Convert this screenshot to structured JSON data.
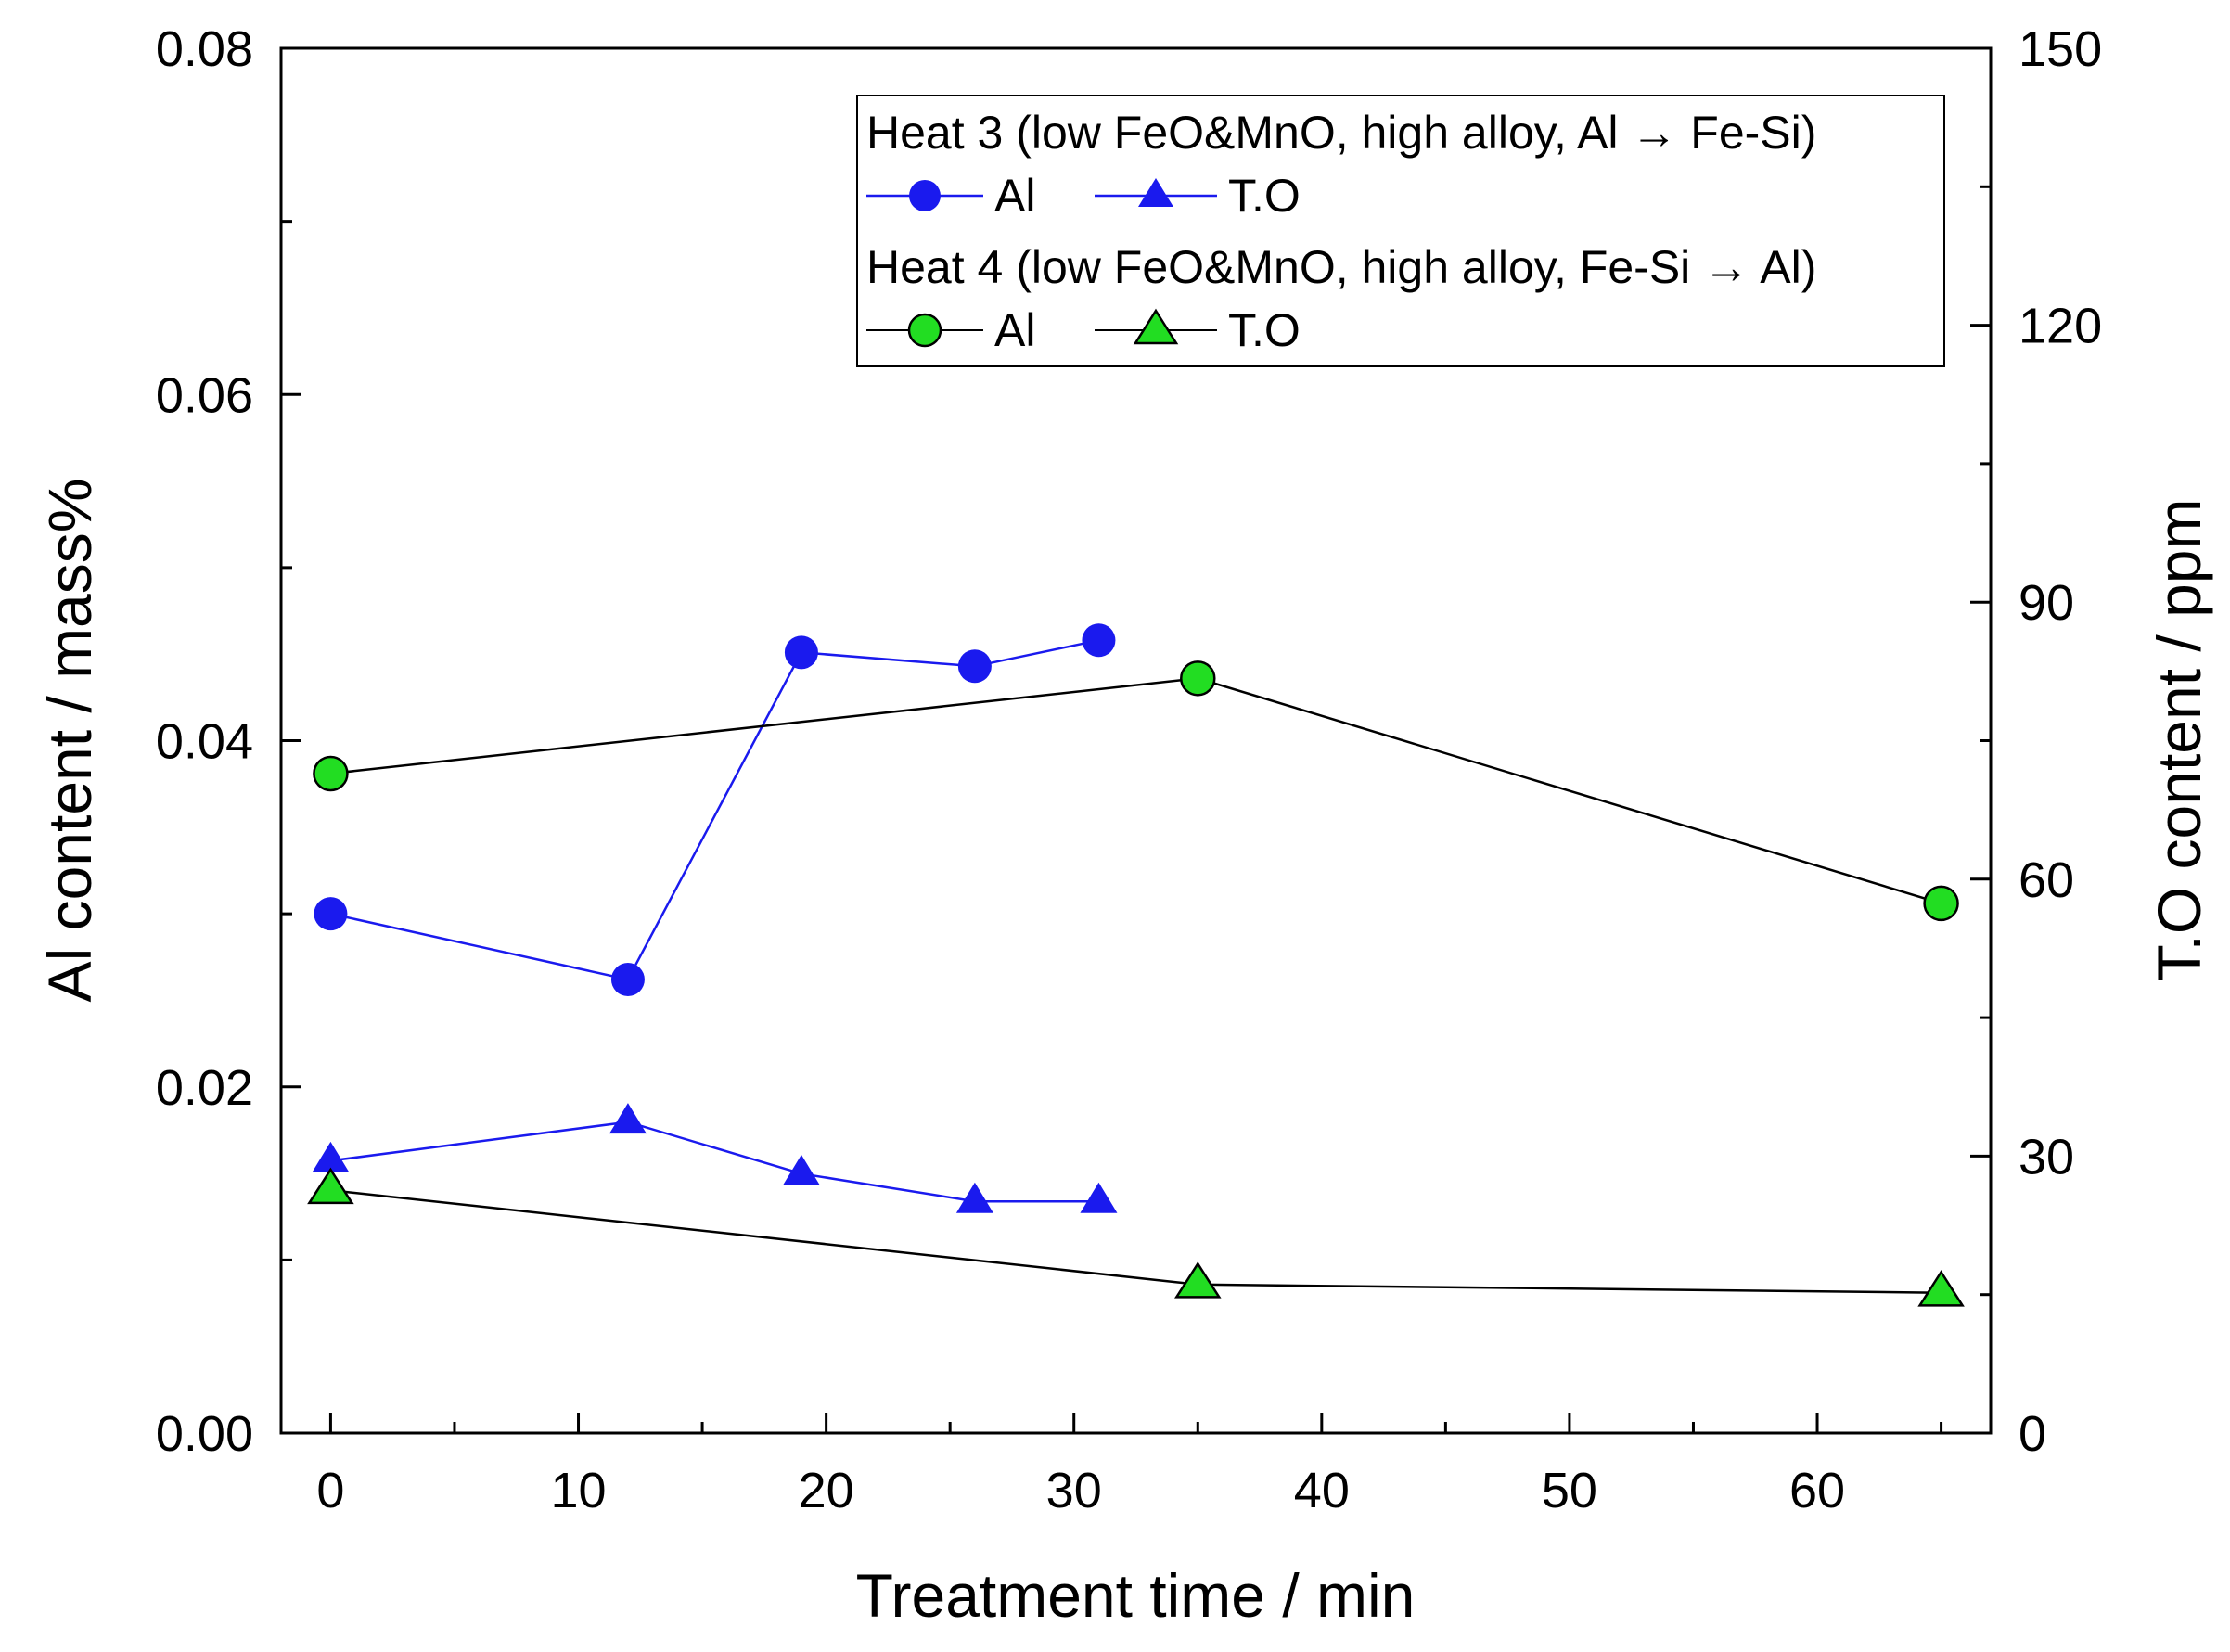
{
  "chart_data": {
    "type": "line",
    "xlabel": "Treatment time / min",
    "ylabel_left": "Al content / mass%",
    "ylabel_right": "T.O content / ppm",
    "xlim": [
      -2,
      67
    ],
    "ylim_left": [
      0,
      0.08
    ],
    "ylim_right": [
      0,
      150
    ],
    "x_ticks": [
      0,
      10,
      20,
      30,
      40,
      50,
      60
    ],
    "x_minor_ticks": [
      5,
      15,
      25,
      35,
      45,
      55,
      65
    ],
    "y_left_ticks": [
      0.0,
      0.02,
      0.04,
      0.06,
      0.08
    ],
    "y_left_tick_labels": [
      "0.00",
      "0.02",
      "0.04",
      "0.06",
      "0.08"
    ],
    "y_left_minor_ticks": [
      0.01,
      0.03,
      0.05,
      0.07
    ],
    "y_right_ticks": [
      0,
      30,
      60,
      90,
      120,
      150
    ],
    "y_right_tick_labels": [
      "0",
      "30",
      "60",
      "90",
      "120",
      "150"
    ],
    "y_right_minor_ticks": [
      15,
      45,
      75,
      105,
      135
    ],
    "grid": false,
    "legend_position": "top-right",
    "legend": {
      "group1_title": "Heat 3 (low FeO&MnO, high alloy, Al → Fe-Si)",
      "group2_title": "Heat 4 (low FeO&MnO, high alloy, Fe-Si → Al)"
    },
    "series": [
      {
        "name": "Al",
        "group": "Heat 3",
        "axis": "left",
        "marker": "circle",
        "color": "#1a1aee",
        "line_color": "#1a1aee",
        "x": [
          0,
          12,
          19,
          26,
          31
        ],
        "values": [
          0.03,
          0.0262,
          0.0451,
          0.0443,
          0.0458
        ]
      },
      {
        "name": "T.O",
        "group": "Heat 3",
        "axis": "right",
        "marker": "triangle",
        "color": "#1a1aee",
        "line_color": "#1a1aee",
        "x": [
          0,
          12,
          19,
          26,
          31
        ],
        "values": [
          29.5,
          33.7,
          28.1,
          25.1,
          25.1
        ]
      },
      {
        "name": "Al",
        "group": "Heat 4",
        "axis": "left",
        "marker": "circle",
        "color": "#22dd22",
        "line_color": "#000000",
        "x": [
          0,
          35,
          65
        ],
        "values": [
          0.0381,
          0.0436,
          0.0306
        ]
      },
      {
        "name": "T.O",
        "group": "Heat 4",
        "axis": "right",
        "marker": "triangle",
        "color": "#22dd22",
        "line_color": "#000000",
        "x": [
          0,
          35,
          65
        ],
        "values": [
          26.3,
          16.1,
          15.2
        ]
      }
    ]
  }
}
